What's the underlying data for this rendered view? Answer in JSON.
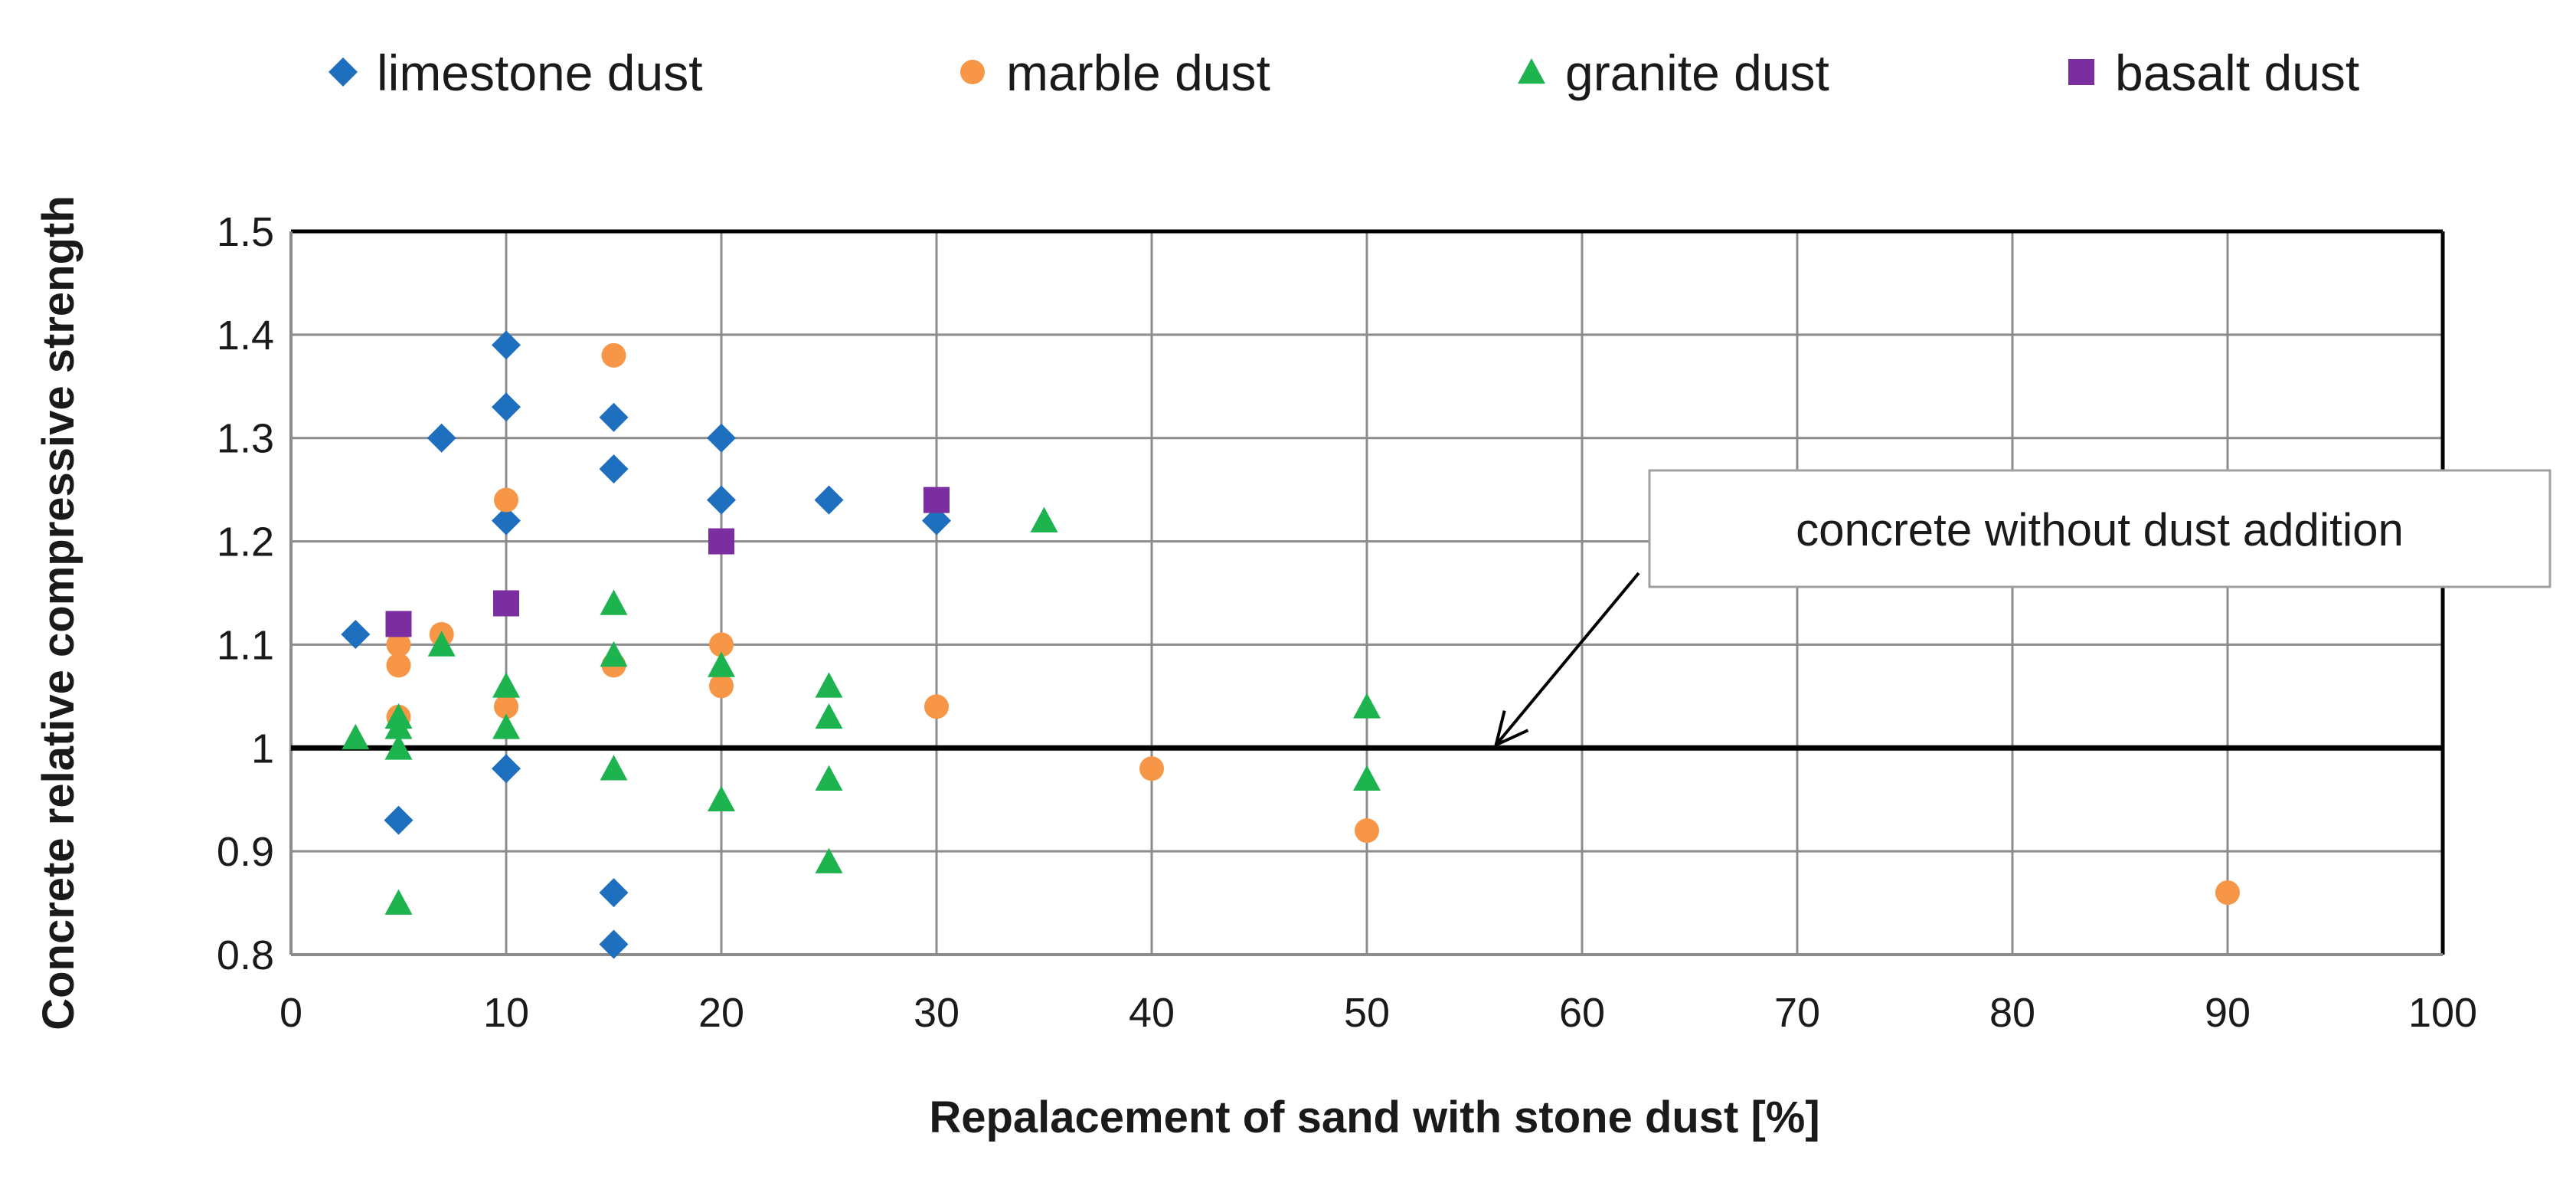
{
  "chart_data": {
    "type": "scatter",
    "xlabel": "Repalacement of sand with stone dust [%]",
    "ylabel": "Concrete relative compressive strength",
    "xlim": [
      0,
      100
    ],
    "ylim": [
      0.8,
      1.5
    ],
    "x_ticks": [
      "0",
      "10",
      "20",
      "30",
      "40",
      "50",
      "60",
      "70",
      "80",
      "90",
      "100"
    ],
    "y_ticks": [
      "0.8",
      "0.9",
      "1",
      "1.1",
      "1.2",
      "1.3",
      "1.4",
      "1.5"
    ],
    "grid": true,
    "legend_position": "top",
    "reference_line": {
      "y": 1.0
    },
    "annotation": {
      "text": "concrete without dust addition",
      "arrow_to": {
        "x": 56,
        "y": 1.0
      }
    },
    "series": [
      {
        "name": "limestone dust",
        "marker": "diamond",
        "color": "#1f6fbf",
        "points": [
          [
            3,
            1.11
          ],
          [
            5,
            0.93
          ],
          [
            7,
            1.3
          ],
          [
            10,
            1.39
          ],
          [
            10,
            1.33
          ],
          [
            10,
            1.22
          ],
          [
            10,
            0.98
          ],
          [
            15,
            1.32
          ],
          [
            15,
            1.27
          ],
          [
            15,
            0.86
          ],
          [
            15,
            0.81
          ],
          [
            20,
            1.3
          ],
          [
            20,
            1.24
          ],
          [
            25,
            1.24
          ],
          [
            30,
            1.22
          ]
        ]
      },
      {
        "name": "marble dust",
        "marker": "circle",
        "color": "#f79646",
        "points": [
          [
            5,
            1.1
          ],
          [
            5,
            1.08
          ],
          [
            5,
            1.03
          ],
          [
            7,
            1.11
          ],
          [
            10,
            1.24
          ],
          [
            10,
            1.04
          ],
          [
            15,
            1.38
          ],
          [
            15,
            1.08
          ],
          [
            20,
            1.1
          ],
          [
            20,
            1.06
          ],
          [
            30,
            1.04
          ],
          [
            40,
            0.98
          ],
          [
            50,
            0.92
          ],
          [
            90,
            0.86
          ]
        ]
      },
      {
        "name": "granite dust",
        "marker": "triangle",
        "color": "#1db34f",
        "points": [
          [
            3,
            1.01
          ],
          [
            5,
            1.03
          ],
          [
            5,
            1.02
          ],
          [
            5,
            1.0
          ],
          [
            5,
            0.85
          ],
          [
            7,
            1.1
          ],
          [
            10,
            1.06
          ],
          [
            10,
            1.02
          ],
          [
            15,
            1.14
          ],
          [
            15,
            1.09
          ],
          [
            15,
            0.98
          ],
          [
            20,
            1.08
          ],
          [
            20,
            0.95
          ],
          [
            25,
            1.06
          ],
          [
            25,
            1.03
          ],
          [
            25,
            0.97
          ],
          [
            25,
            0.89
          ],
          [
            35,
            1.22
          ],
          [
            50,
            1.04
          ],
          [
            50,
            0.97
          ]
        ]
      },
      {
        "name": "basalt dust",
        "marker": "square",
        "color": "#7a2ea0",
        "points": [
          [
            5,
            1.12
          ],
          [
            10,
            1.14
          ],
          [
            20,
            1.2
          ],
          [
            30,
            1.24
          ]
        ]
      }
    ]
  }
}
